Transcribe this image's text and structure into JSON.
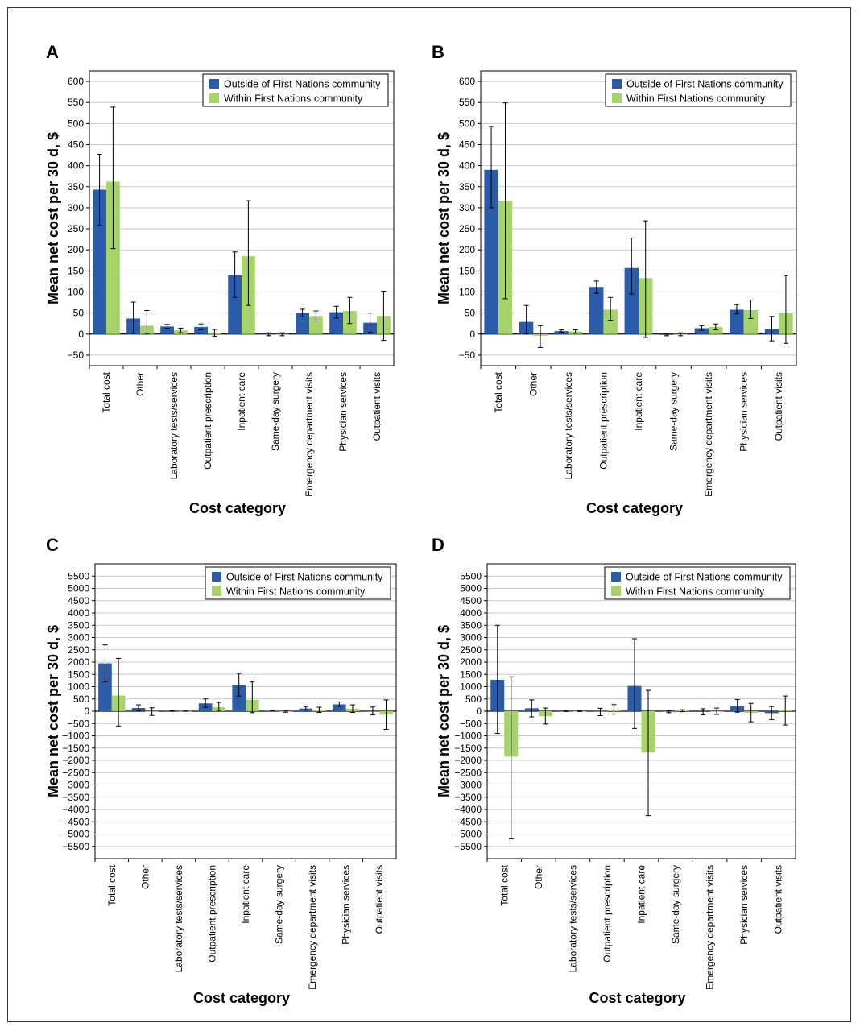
{
  "colors": {
    "series1": "#2a5caa",
    "series2": "#a6d46a",
    "grid": "#c8c8c8",
    "axis": "#000000"
  },
  "chart_data": [
    {
      "panel": "A",
      "type": "bar",
      "categories": [
        "Total cost",
        "Other",
        "Laboratory tests/services",
        "Outpatient prescription",
        "Inpatient care",
        "Same-day surgery",
        "Emergency department visits",
        "Physician services",
        "Outpatient visits"
      ],
      "series": [
        {
          "name": "Outside of First Nations community",
          "values": [
            343,
            37,
            18,
            17,
            140,
            0,
            50,
            52,
            27
          ],
          "err_low": [
            258,
            2,
            14,
            10,
            87,
            -4,
            41,
            38,
            4
          ],
          "err_high": [
            427,
            76,
            23,
            24,
            195,
            3,
            59,
            66,
            50
          ]
        },
        {
          "name": "Within First Nations community",
          "values": [
            362,
            20,
            9,
            3,
            185,
            0,
            43,
            55,
            43
          ],
          "err_low": [
            203,
            0,
            3,
            -5,
            68,
            -4,
            31,
            25,
            -15
          ],
          "err_high": [
            539,
            56,
            14,
            11,
            317,
            3,
            55,
            87,
            102
          ]
        }
      ],
      "xlabel": "Cost category",
      "ylabel": "Mean net cost per 30 d, $",
      "ylim": [
        -75,
        625
      ],
      "yticks": [
        600,
        550,
        500,
        450,
        400,
        350,
        300,
        250,
        200,
        150,
        100,
        50,
        0,
        -50
      ],
      "ytick_labels": [
        "600",
        "550",
        "500",
        "450",
        "400",
        "350",
        "300",
        "250",
        "200",
        "150",
        "100",
        "50",
        "0",
        "−50"
      ],
      "grid": true,
      "legend": "top-right"
    },
    {
      "panel": "B",
      "type": "bar",
      "categories": [
        "Total cost",
        "Other",
        "Laboratory tests/services",
        "Outpatient prescription",
        "Inpatient care",
        "Same-day surgery",
        "Emergency department visits",
        "Physician services",
        "Outpatient visits"
      ],
      "series": [
        {
          "name": "Outside of First Nations community",
          "values": [
            390,
            29,
            7,
            112,
            157,
            -2,
            14,
            58,
            12
          ],
          "err_low": [
            300,
            0,
            5,
            97,
            95,
            -4,
            9,
            48,
            -16
          ],
          "err_high": [
            493,
            68,
            10,
            126,
            228,
            0,
            20,
            70,
            42
          ]
        },
        {
          "name": "Within First Nations community",
          "values": [
            317,
            -4,
            6,
            58,
            133,
            0,
            17,
            57,
            50
          ],
          "err_low": [
            84,
            -32,
            2,
            33,
            -8,
            -4,
            10,
            37,
            -22
          ],
          "err_high": [
            549,
            20,
            10,
            87,
            269,
            3,
            24,
            81,
            139
          ]
        }
      ],
      "xlabel": "Cost category",
      "ylabel": "Mean net cost per 30 d, $",
      "ylim": [
        -75,
        625
      ],
      "yticks": [
        600,
        550,
        500,
        450,
        400,
        350,
        300,
        250,
        200,
        150,
        100,
        50,
        0,
        -50
      ],
      "ytick_labels": [
        "600",
        "550",
        "500",
        "450",
        "400",
        "350",
        "300",
        "250",
        "200",
        "150",
        "100",
        "50",
        "0",
        "−50"
      ],
      "grid": true,
      "legend": "top-right"
    },
    {
      "panel": "C",
      "type": "bar",
      "categories": [
        "Total cost",
        "Other",
        "Laboratory tests/services",
        "Outpatient prescription",
        "Inpatient care",
        "Same-day surgery",
        "Emergency department visits",
        "Physician services",
        "Outpatient visits"
      ],
      "series": [
        {
          "name": "Outside of First Nations community",
          "values": [
            1950,
            130,
            10,
            320,
            1060,
            20,
            110,
            280,
            0
          ],
          "err_low": [
            1200,
            20,
            0,
            160,
            620,
            0,
            40,
            200,
            -150
          ],
          "err_high": [
            2700,
            260,
            20,
            500,
            1540,
            40,
            190,
            380,
            170
          ]
        },
        {
          "name": "Within First Nations community",
          "values": [
            640,
            -10,
            5,
            160,
            460,
            0,
            60,
            100,
            -140
          ],
          "err_low": [
            -600,
            -170,
            0,
            0,
            -60,
            -40,
            -50,
            -50,
            -740
          ],
          "err_high": [
            2150,
            140,
            10,
            360,
            1190,
            40,
            160,
            260,
            460
          ]
        }
      ],
      "xlabel": "Cost category",
      "ylabel": "Mean net cost per 30 d, $",
      "ylim": [
        -6000,
        6000
      ],
      "yticks": [
        5500,
        5000,
        4500,
        4000,
        3500,
        3000,
        2500,
        2000,
        1500,
        1000,
        500,
        0,
        -500,
        -1000,
        -1500,
        -2000,
        -2500,
        -3000,
        -3500,
        -4000,
        -4500,
        -5000,
        -5500
      ],
      "ytick_labels": [
        "5500",
        "5000",
        "4500",
        "4000",
        "3500",
        "3000",
        "2500",
        "2000",
        "1500",
        "1000",
        "500",
        "0",
        "−500",
        "−1000",
        "−1500",
        "−2000",
        "−2500",
        "−3000",
        "−3500",
        "−4000",
        "−4500",
        "−5000",
        "−5500"
      ],
      "grid": true,
      "legend": "top-right"
    },
    {
      "panel": "D",
      "type": "bar",
      "categories": [
        "Total cost",
        "Other",
        "Laboratory tests/services",
        "Outpatient prescription",
        "Inpatient care",
        "Same-day surgery",
        "Emergency department visits",
        "Physician services",
        "Outpatient visits"
      ],
      "series": [
        {
          "name": "Outside of First Nations community",
          "values": [
            1280,
            120,
            0,
            0,
            1030,
            -20,
            -30,
            200,
            -80
          ],
          "err_low": [
            -900,
            -230,
            -10,
            -180,
            -700,
            -60,
            -150,
            -40,
            -340
          ],
          "err_high": [
            3500,
            460,
            10,
            120,
            2950,
            20,
            100,
            480,
            190
          ]
        },
        {
          "name": "Within First Nations community",
          "values": [
            -1850,
            -200,
            0,
            70,
            -1680,
            20,
            0,
            -70,
            30
          ],
          "err_low": [
            -5200,
            -520,
            -10,
            -120,
            -4250,
            -20,
            -130,
            -430,
            -560
          ],
          "err_high": [
            1400,
            130,
            10,
            270,
            850,
            60,
            130,
            320,
            620
          ]
        }
      ],
      "xlabel": "Cost category",
      "ylabel": "Mean net cost per 30 d, $",
      "ylim": [
        -6000,
        6000
      ],
      "yticks": [
        5500,
        5000,
        4500,
        4000,
        3500,
        3000,
        2500,
        2000,
        1500,
        1000,
        500,
        0,
        -500,
        -1000,
        -1500,
        -2000,
        -2500,
        -3000,
        -3500,
        -4000,
        -4500,
        -5000,
        -5500
      ],
      "ytick_labels": [
        "5500",
        "5000",
        "4500",
        "4000",
        "3500",
        "3000",
        "2500",
        "2000",
        "1500",
        "1000",
        "500",
        "0",
        "−500",
        "−1000",
        "−1500",
        "−2000",
        "−2500",
        "−3000",
        "−3500",
        "−4000",
        "−4500",
        "−5000",
        "−5500"
      ],
      "grid": true,
      "legend": "top-right"
    }
  ]
}
